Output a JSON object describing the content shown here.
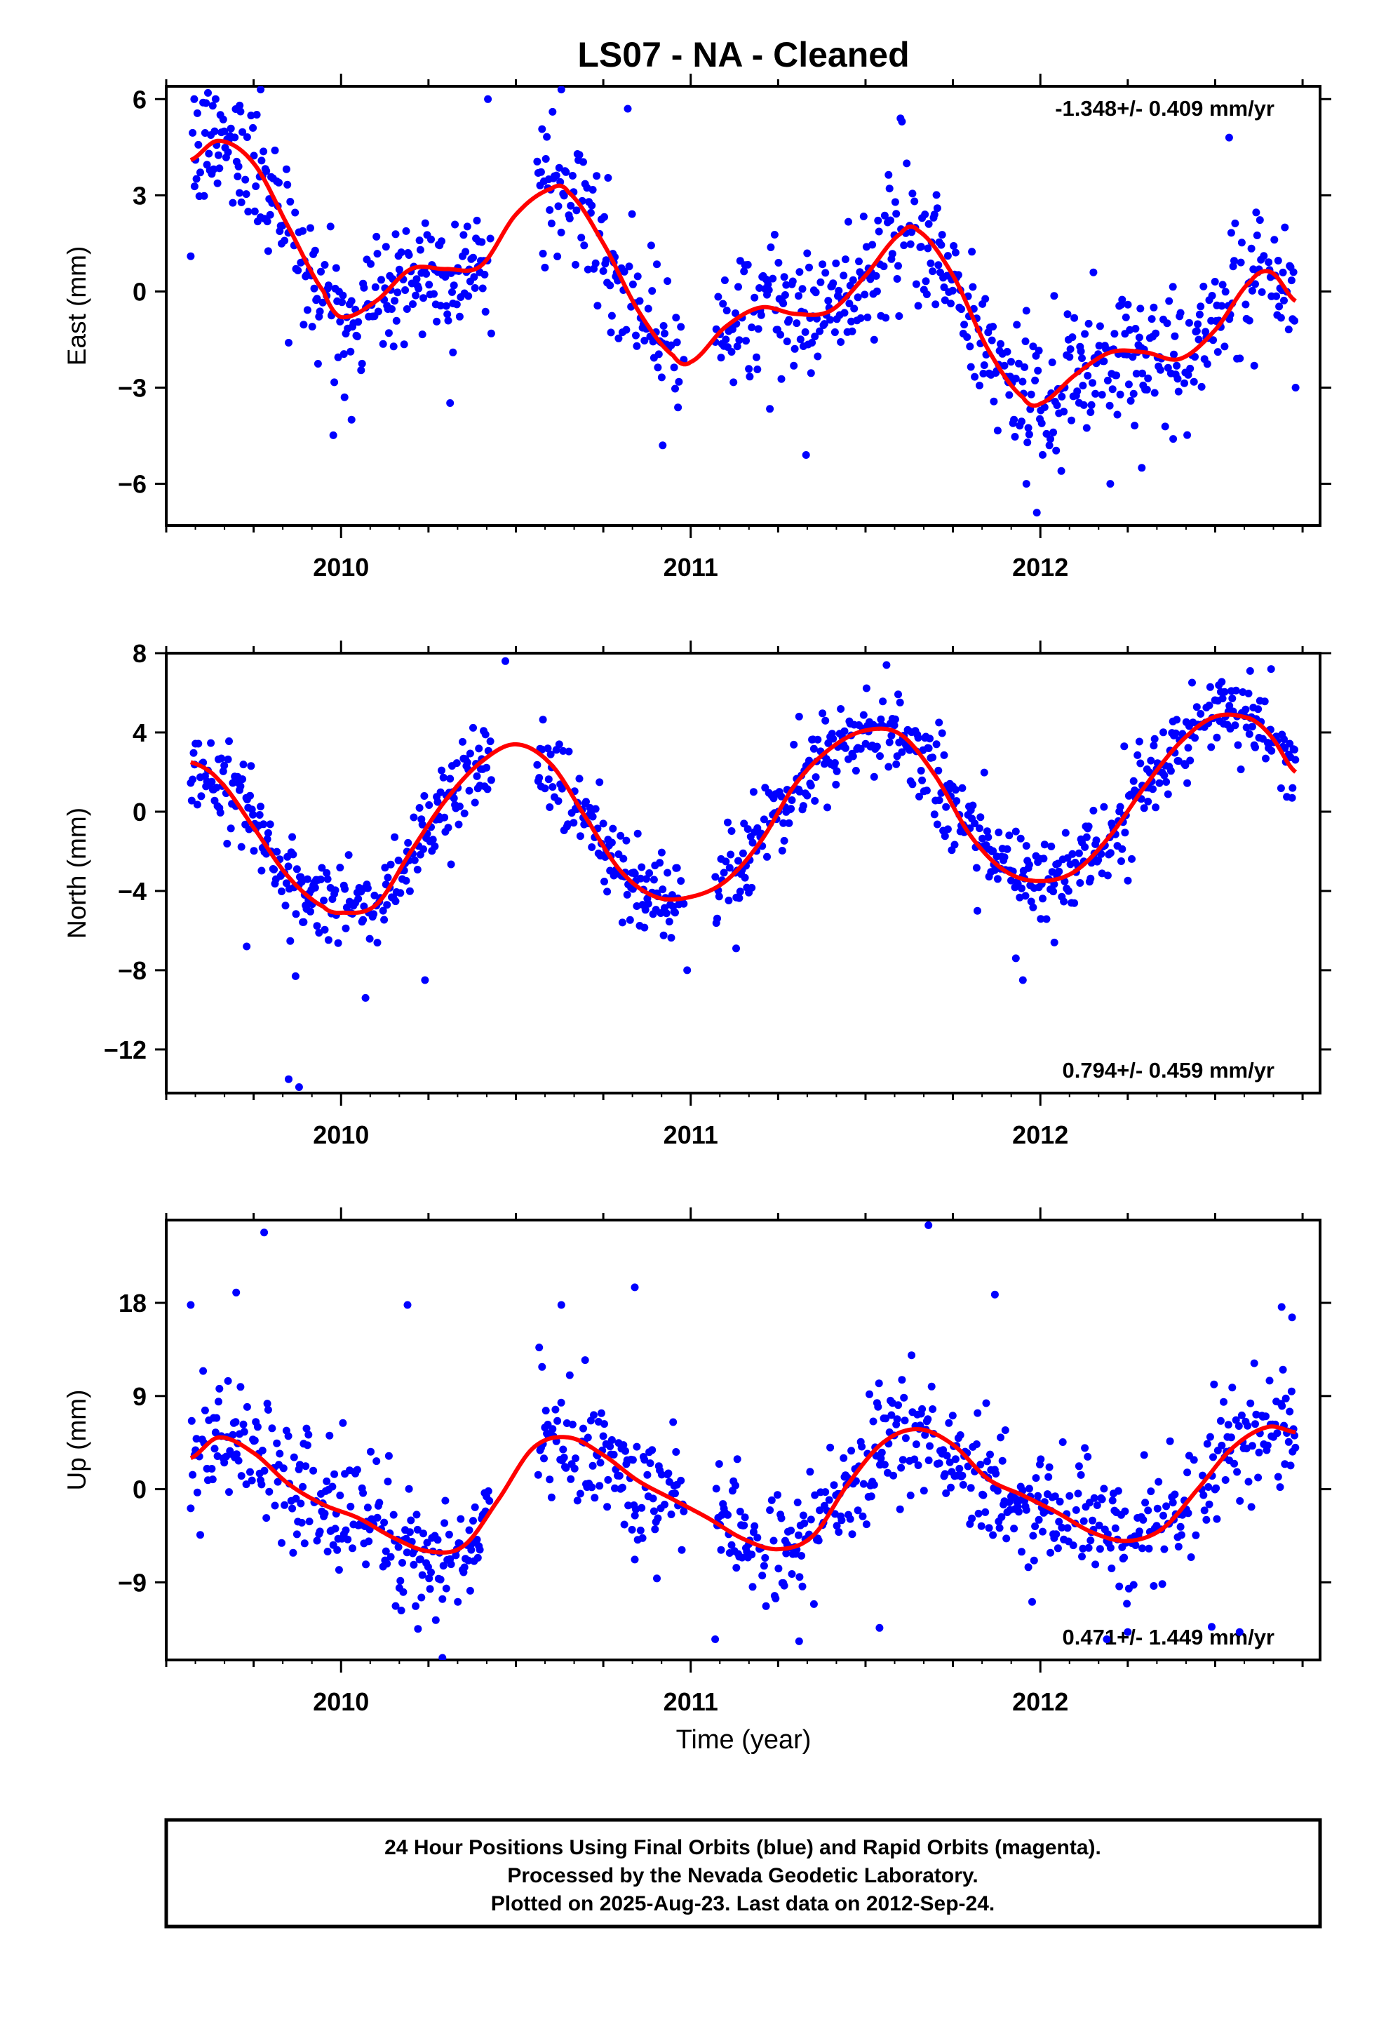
{
  "title": "LS07  - NA - Cleaned",
  "xlabel": "Time (year)",
  "colors": {
    "points": "#0000ff",
    "fit": "#ff0000",
    "axes": "#000000"
  },
  "footer": {
    "line1": "24 Hour Positions Using Final Orbits (blue) and Rapid Orbits (magenta).",
    "line2": "Processed by the Nevada Geodetic Laboratory.",
    "line3": "Plotted on 2025-Aug-23. Last data on 2012-Sep-24."
  },
  "chart_data": [
    {
      "type": "scatter",
      "name": "east",
      "ylabel": "East (mm)",
      "rate_text": "-1.348+/- 0.409 mm/yr",
      "rate_position": "top-right",
      "xlim": [
        2009.5,
        2012.8
      ],
      "ylim": [
        -7.3,
        6.4
      ],
      "yticks": [
        -6,
        -3,
        0,
        3,
        6
      ],
      "xticks": [
        2010,
        2011,
        2012
      ],
      "grid": false,
      "scatter_noise": 1.0,
      "fit": {
        "x": [
          2009.57,
          2009.65,
          2009.75,
          2009.85,
          2009.95,
          2010.0,
          2010.1,
          2010.2,
          2010.3,
          2010.4,
          2010.5,
          2010.6,
          2010.65,
          2010.75,
          2010.85,
          2010.95,
          2011.0,
          2011.1,
          2011.2,
          2011.3,
          2011.4,
          2011.5,
          2011.6,
          2011.65,
          2011.75,
          2011.85,
          2011.95,
          2012.0,
          2012.1,
          2012.2,
          2012.3,
          2012.4,
          2012.5,
          2012.6,
          2012.66,
          2012.73
        ],
        "y": [
          4.1,
          4.7,
          4.0,
          2.0,
          0.0,
          -0.8,
          -0.3,
          0.7,
          0.7,
          0.8,
          2.4,
          3.2,
          3.1,
          1.5,
          -0.6,
          -2.0,
          -2.2,
          -1.1,
          -0.5,
          -0.7,
          -0.6,
          0.5,
          1.8,
          1.9,
          0.5,
          -1.8,
          -3.3,
          -3.5,
          -2.6,
          -1.9,
          -1.9,
          -2.1,
          -1.2,
          0.3,
          0.6,
          -0.3
        ]
      },
      "outliers": [
        [
          2009.77,
          6.3
        ],
        [
          2009.71,
          5.8
        ],
        [
          2009.58,
          6.0
        ],
        [
          2010.42,
          6.0
        ],
        [
          2010.63,
          6.3
        ],
        [
          2010.82,
          5.7
        ],
        [
          2011.6,
          5.4
        ],
        [
          2012.54,
          4.8
        ],
        [
          2009.57,
          1.1
        ],
        [
          2009.85,
          -1.6
        ],
        [
          2010.03,
          -4.0
        ],
        [
          2010.01,
          -3.3
        ],
        [
          2010.92,
          -4.8
        ],
        [
          2011.33,
          -5.1
        ],
        [
          2011.99,
          -6.9
        ],
        [
          2011.96,
          -6.0
        ],
        [
          2012.06,
          -5.6
        ],
        [
          2012.2,
          -6.0
        ],
        [
          2012.29,
          -5.5
        ],
        [
          2012.38,
          -4.6
        ],
        [
          2010.32,
          -1.9
        ],
        [
          2012.73,
          -3.0
        ]
      ]
    },
    {
      "type": "scatter",
      "name": "north",
      "ylabel": "North (mm)",
      "rate_text": "0.794+/- 0.459 mm/yr",
      "rate_position": "bottom-right",
      "xlim": [
        2009.5,
        2012.8
      ],
      "ylim": [
        -14.2,
        8.0
      ],
      "yticks": [
        -12,
        -8,
        -4,
        0,
        4,
        8
      ],
      "xticks": [
        2010,
        2011,
        2012
      ],
      "grid": false,
      "scatter_noise": 1.1,
      "fit": {
        "x": [
          2009.57,
          2009.65,
          2009.75,
          2009.85,
          2009.95,
          2010.0,
          2010.1,
          2010.2,
          2010.3,
          2010.4,
          2010.5,
          2010.6,
          2010.7,
          2010.8,
          2010.9,
          2011.0,
          2011.1,
          2011.2,
          2011.3,
          2011.4,
          2011.5,
          2011.6,
          2011.7,
          2011.8,
          2011.9,
          2012.0,
          2012.1,
          2012.2,
          2012.3,
          2012.4,
          2012.5,
          2012.6,
          2012.66,
          2012.73
        ],
        "y": [
          2.5,
          1.6,
          -0.8,
          -3.3,
          -4.8,
          -5.1,
          -4.7,
          -2.0,
          0.6,
          2.5,
          3.4,
          2.4,
          -0.3,
          -3.0,
          -4.3,
          -4.3,
          -3.5,
          -1.5,
          1.4,
          3.2,
          4.1,
          3.9,
          1.8,
          -1.2,
          -3.0,
          -3.5,
          -3.0,
          -1.2,
          1.3,
          3.5,
          4.8,
          4.7,
          3.8,
          2.0
        ]
      },
      "outliers": [
        [
          2009.85,
          -13.5
        ],
        [
          2009.88,
          -13.9
        ],
        [
          2010.07,
          -9.4
        ],
        [
          2009.87,
          -8.3
        ],
        [
          2010.24,
          -8.5
        ],
        [
          2009.73,
          -6.8
        ],
        [
          2010.47,
          7.6
        ],
        [
          2011.56,
          7.4
        ],
        [
          2012.66,
          7.2
        ],
        [
          2011.31,
          4.8
        ],
        [
          2011.93,
          -7.4
        ],
        [
          2011.95,
          -8.5
        ],
        [
          2012.04,
          -6.6
        ],
        [
          2012.6,
          7.1
        ],
        [
          2012.72,
          0.7
        ],
        [
          2011.71,
          4.5
        ],
        [
          2012.24,
          3.3
        ],
        [
          2010.99,
          -8.0
        ],
        [
          2011.13,
          -6.9
        ],
        [
          2011.82,
          -5.0
        ]
      ]
    },
    {
      "type": "scatter",
      "name": "up",
      "ylabel": "Up (mm)",
      "rate_text": "0.471+/- 1.449 mm/yr",
      "rate_position": "bottom-right",
      "xlim": [
        2009.5,
        2012.8
      ],
      "ylim": [
        -16.5,
        26.0
      ],
      "yticks": [
        -9,
        0,
        9,
        18
      ],
      "xticks": [
        2010,
        2011,
        2012
      ],
      "grid": false,
      "scatter_noise": 3.0,
      "fit": {
        "x": [
          2009.57,
          2009.65,
          2009.75,
          2009.85,
          2009.95,
          2010.05,
          2010.15,
          2010.25,
          2010.35,
          2010.45,
          2010.55,
          2010.65,
          2010.75,
          2010.85,
          2010.95,
          2011.05,
          2011.15,
          2011.25,
          2011.35,
          2011.45,
          2011.55,
          2011.65,
          2011.75,
          2011.85,
          2011.95,
          2012.05,
          2012.15,
          2012.25,
          2012.35,
          2012.45,
          2012.55,
          2012.65,
          2012.73
        ],
        "y": [
          3.0,
          5.0,
          3.5,
          0.5,
          -1.5,
          -2.8,
          -4.7,
          -6.0,
          -5.5,
          -1.0,
          4.0,
          5.0,
          3.3,
          0.8,
          -1.0,
          -2.8,
          -4.8,
          -5.8,
          -4.5,
          0.5,
          4.5,
          5.8,
          4.3,
          1.0,
          -0.6,
          -2.3,
          -4.2,
          -5.0,
          -3.8,
          0.0,
          4.0,
          6.0,
          5.5
        ]
      },
      "outliers": [
        [
          2009.78,
          24.8
        ],
        [
          2011.68,
          25.5
        ],
        [
          2010.84,
          19.5
        ],
        [
          2009.7,
          19.0
        ],
        [
          2011.87,
          18.8
        ],
        [
          2009.57,
          17.8
        ],
        [
          2010.19,
          17.8
        ],
        [
          2010.63,
          17.8
        ],
        [
          2012.69,
          17.6
        ],
        [
          2012.72,
          16.6
        ],
        [
          2010.29,
          -16.3
        ],
        [
          2011.07,
          -14.5
        ],
        [
          2011.31,
          -14.7
        ],
        [
          2012.19,
          -14.5
        ],
        [
          2012.25,
          -13.8
        ],
        [
          2010.22,
          -13.5
        ],
        [
          2012.49,
          -13.3
        ],
        [
          2011.54,
          -13.4
        ],
        [
          2012.57,
          -13.8
        ],
        [
          2010.84,
          -6.8
        ]
      ]
    }
  ]
}
